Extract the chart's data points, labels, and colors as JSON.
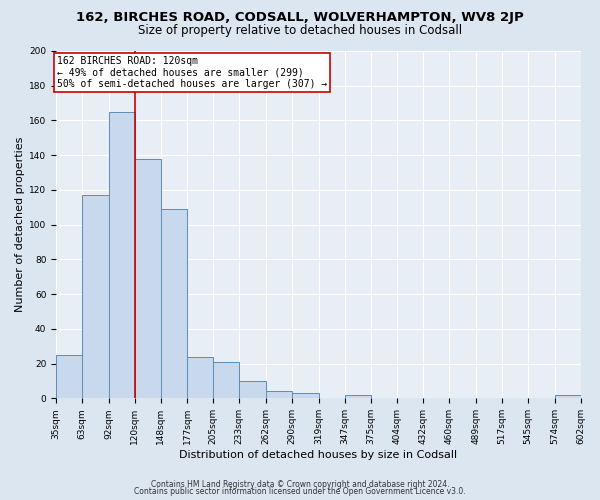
{
  "title": "162, BIRCHES ROAD, CODSALL, WOLVERHAMPTON, WV8 2JP",
  "subtitle": "Size of property relative to detached houses in Codsall",
  "xlabel": "Distribution of detached houses by size in Codsall",
  "ylabel": "Number of detached properties",
  "footer_line1": "Contains HM Land Registry data © Crown copyright and database right 2024.",
  "footer_line2": "Contains public sector information licensed under the Open Government Licence v3.0.",
  "bin_edges": [
    35,
    63,
    92,
    120,
    148,
    177,
    205,
    233,
    262,
    290,
    319,
    347,
    375,
    404,
    432,
    460,
    489,
    517,
    545,
    574,
    602
  ],
  "bin_counts": [
    25,
    117,
    165,
    138,
    109,
    24,
    21,
    10,
    4,
    3,
    0,
    2,
    0,
    0,
    0,
    0,
    0,
    0,
    0,
    2
  ],
  "bar_color": "#c9d9ed",
  "bar_edge_color": "#5b8db8",
  "marker_value": 120,
  "marker_color": "#cc0000",
  "annotation_title": "162 BIRCHES ROAD: 120sqm",
  "annotation_line1": "← 49% of detached houses are smaller (299)",
  "annotation_line2": "50% of semi-detached houses are larger (307) →",
  "annotation_box_facecolor": "#ffffff",
  "annotation_box_edgecolor": "#cc0000",
  "ylim": [
    0,
    200
  ],
  "yticks": [
    0,
    20,
    40,
    60,
    80,
    100,
    120,
    140,
    160,
    180,
    200
  ],
  "fig_background_color": "#dce6f0",
  "plot_background_color": "#e8eef6",
  "grid_color": "#ffffff",
  "title_fontsize": 9.5,
  "subtitle_fontsize": 8.5,
  "axis_label_fontsize": 8,
  "tick_fontsize": 6.5,
  "annotation_fontsize": 7,
  "footer_fontsize": 5.5
}
